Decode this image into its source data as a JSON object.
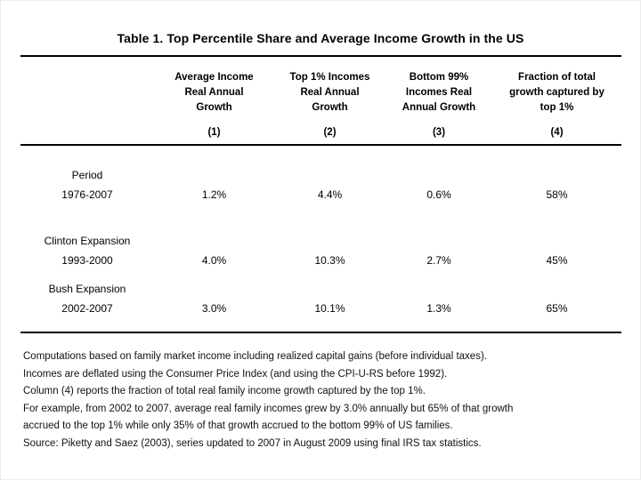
{
  "title": "Table 1. Top Percentile Share and Average Income Growth in the US",
  "table": {
    "columns": [
      {
        "header": "Average Income\nReal Annual\nGrowth",
        "number": "(1)"
      },
      {
        "header": "Top 1% Incomes\nReal Annual\nGrowth",
        "number": "(2)"
      },
      {
        "header": "Bottom 99%\nIncomes Real\nAnnual Growth",
        "number": "(3)"
      },
      {
        "header": "Fraction of total\ngrowth captured by\ntop 1%",
        "number": "(4)"
      }
    ],
    "rows": [
      {
        "label": "Period",
        "period": "1976-2007",
        "values": [
          "1.2%",
          "4.4%",
          "0.6%",
          "58%"
        ]
      },
      {
        "label": "Clinton Expansion",
        "period": "1993-2000",
        "values": [
          "4.0%",
          "10.3%",
          "2.7%",
          "45%"
        ]
      },
      {
        "label": "Bush Expansion",
        "period": "2002-2007",
        "values": [
          "3.0%",
          "10.1%",
          "1.3%",
          "65%"
        ]
      }
    ]
  },
  "footnotes": [
    "Computations based on family market income including realized capital gains (before individual taxes).",
    "Incomes are deflated using the Consumer Price Index (and using the CPI-U-RS before 1992).",
    "Column (4) reports the fraction of total real family income growth captured by the top 1%.",
    "For example, from 2002 to 2007, average real family incomes grew by 3.0% annually but 65% of that growth",
    "accrued to the top 1% while only 35% of that growth accrued to the bottom 99% of US families.",
    "Source: Piketty and Saez (2003), series updated to 2007 in August 2009 using final IRS tax statistics."
  ],
  "chart_data": {
    "type": "table",
    "title": "Table 1. Top Percentile Share and Average Income Growth in the US",
    "columns": [
      "",
      "Average Income Real Annual Growth (1)",
      "Top 1% Incomes Real Annual Growth (2)",
      "Bottom 99% Incomes Real Annual Growth (3)",
      "Fraction of total growth captured by top 1% (4)"
    ],
    "rows": [
      [
        "Period 1976-2007",
        "1.2%",
        "4.4%",
        "0.6%",
        "58%"
      ],
      [
        "Clinton Expansion 1993-2000",
        "4.0%",
        "10.3%",
        "2.7%",
        "45%"
      ],
      [
        "Bush Expansion 2002-2007",
        "3.0%",
        "10.1%",
        "1.3%",
        "65%"
      ]
    ]
  }
}
